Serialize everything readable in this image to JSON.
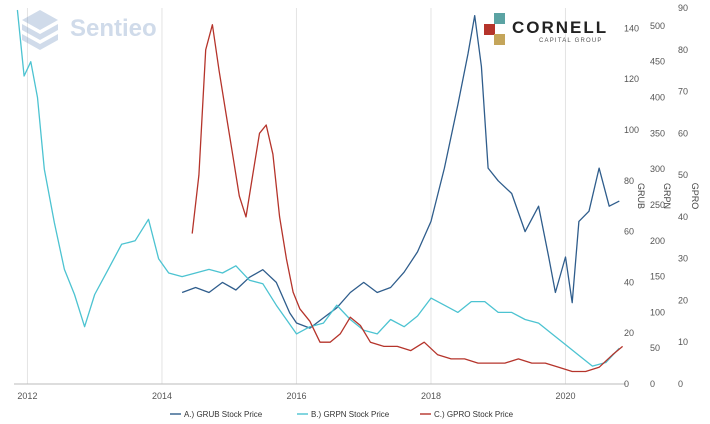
{
  "watermark": {
    "name": "Sentieo"
  },
  "brand": {
    "name": "CORNELL",
    "sub": "CAPITAL GROUP"
  },
  "colors": {
    "grub": "#2f5d8c",
    "grpn": "#4cc3d1",
    "gpro": "#b5342b",
    "grid": "#e4e4e4"
  },
  "chart_data": {
    "type": "line",
    "title": "",
    "xlabel": "",
    "x_ticks": [
      "2012",
      "2014",
      "2016",
      "2018",
      "2020"
    ],
    "x_range": [
      2011.8,
      2020.9
    ],
    "axes": [
      {
        "id": "grub",
        "label": "GRUB",
        "ticks": [
          0,
          20,
          40,
          60,
          80,
          100,
          120,
          140
        ],
        "range": [
          0,
          148
        ]
      },
      {
        "id": "grpn",
        "label": "GRPN",
        "ticks": [
          0,
          50,
          100,
          150,
          200,
          250,
          300,
          350,
          400,
          450,
          500
        ],
        "range": [
          0,
          525
        ]
      },
      {
        "id": "gpro",
        "label": "GPRO",
        "ticks": [
          0,
          10,
          20,
          30,
          40,
          50,
          60,
          70,
          80,
          90
        ],
        "range": [
          0,
          90
        ]
      }
    ],
    "series": [
      {
        "name": "A.) GRUB Stock Price",
        "axis": "grub",
        "x": [
          2014.3,
          2014.5,
          2014.7,
          2014.9,
          2015.1,
          2015.3,
          2015.5,
          2015.7,
          2015.9,
          2016.0,
          2016.2,
          2016.4,
          2016.6,
          2016.8,
          2017.0,
          2017.2,
          2017.4,
          2017.6,
          2017.8,
          2018.0,
          2018.2,
          2018.4,
          2018.55,
          2018.65,
          2018.75,
          2018.85,
          2019.0,
          2019.2,
          2019.4,
          2019.6,
          2019.75,
          2019.85,
          2020.0,
          2020.1,
          2020.2,
          2020.35,
          2020.5,
          2020.65,
          2020.8
        ],
        "y": [
          36,
          38,
          36,
          40,
          37,
          42,
          45,
          40,
          28,
          24,
          22,
          26,
          30,
          36,
          40,
          36,
          38,
          44,
          52,
          64,
          85,
          110,
          130,
          145,
          125,
          85,
          80,
          75,
          60,
          70,
          50,
          36,
          50,
          32,
          64,
          68,
          85,
          70,
          72
        ]
      },
      {
        "name": "B.) GRPN Stock Price",
        "axis": "grpn",
        "x": [
          2011.85,
          2011.95,
          2012.05,
          2012.15,
          2012.25,
          2012.4,
          2012.55,
          2012.7,
          2012.85,
          2013.0,
          2013.2,
          2013.4,
          2013.6,
          2013.8,
          2013.95,
          2014.1,
          2014.3,
          2014.5,
          2014.7,
          2014.9,
          2015.1,
          2015.3,
          2015.5,
          2015.7,
          2015.85,
          2016.0,
          2016.2,
          2016.4,
          2016.6,
          2016.8,
          2017.0,
          2017.2,
          2017.4,
          2017.6,
          2017.8,
          2018.0,
          2018.2,
          2018.4,
          2018.6,
          2018.8,
          2019.0,
          2019.2,
          2019.4,
          2019.6,
          2019.8,
          2020.0,
          2020.2,
          2020.4,
          2020.6,
          2020.8
        ],
        "y": [
          545,
          430,
          450,
          400,
          300,
          225,
          160,
          125,
          80,
          125,
          160,
          195,
          200,
          230,
          175,
          155,
          150,
          155,
          160,
          155,
          165,
          145,
          140,
          110,
          90,
          70,
          80,
          85,
          110,
          90,
          75,
          70,
          90,
          80,
          95,
          120,
          110,
          100,
          115,
          115,
          100,
          100,
          90,
          85,
          70,
          55,
          40,
          25,
          30,
          50
        ]
      },
      {
        "name": "C.) GPRO Stock Price",
        "axis": "gpro",
        "x": [
          2014.45,
          2014.55,
          2014.65,
          2014.75,
          2014.85,
          2014.95,
          2015.05,
          2015.15,
          2015.25,
          2015.35,
          2015.45,
          2015.55,
          2015.65,
          2015.75,
          2015.85,
          2015.95,
          2016.05,
          2016.2,
          2016.35,
          2016.5,
          2016.65,
          2016.8,
          2016.95,
          2017.1,
          2017.3,
          2017.5,
          2017.7,
          2017.9,
          2018.1,
          2018.3,
          2018.5,
          2018.7,
          2018.9,
          2019.1,
          2019.3,
          2019.5,
          2019.7,
          2019.9,
          2020.1,
          2020.3,
          2020.5,
          2020.7,
          2020.85
        ],
        "y": [
          36,
          50,
          80,
          86,
          75,
          65,
          55,
          45,
          40,
          50,
          60,
          62,
          55,
          40,
          30,
          22,
          18,
          15,
          10,
          10,
          12,
          16,
          14,
          10,
          9,
          9,
          8,
          10,
          7,
          6,
          6,
          5,
          5,
          5,
          6,
          5,
          5,
          4,
          3,
          3,
          4,
          7,
          9
        ]
      }
    ],
    "legend": {
      "position": "bottom"
    }
  }
}
